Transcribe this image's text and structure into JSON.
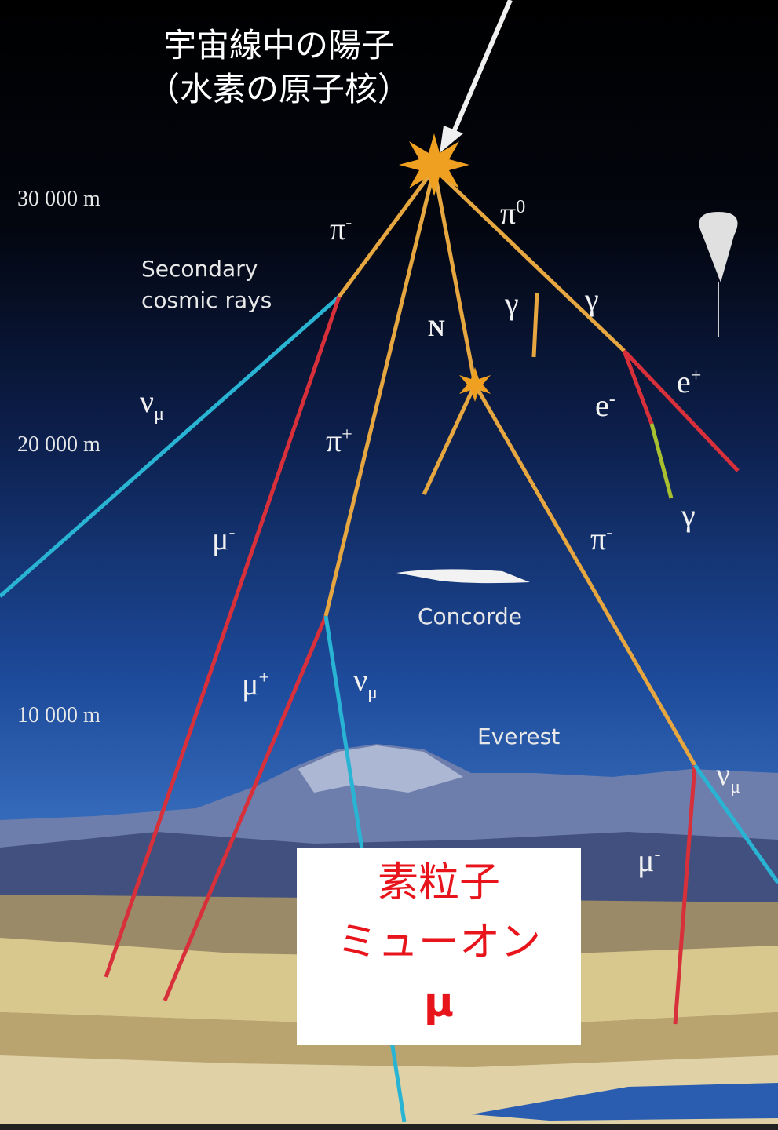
{
  "header": {
    "title_line1": "宇宙線中の陽子",
    "title_line2": "（水素の原子核）"
  },
  "altitudes": [
    "30 000 m",
    "20 000 m",
    "10 000 m"
  ],
  "annotations": {
    "secondary_line1": "Secondary",
    "secondary_line2": "cosmic rays",
    "concorde": "Concorde",
    "everest": "Everest"
  },
  "particles": [
    {
      "symbol": "π",
      "sup": "-"
    },
    {
      "symbol": "π",
      "sup": "0"
    },
    {
      "symbol": "N"
    },
    {
      "symbol": "γ"
    },
    {
      "symbol": "γ"
    },
    {
      "symbol": "e",
      "sup": "+"
    },
    {
      "symbol": "e",
      "sup": "-"
    },
    {
      "symbol": "γ"
    },
    {
      "symbol": "ν",
      "sub": "μ"
    },
    {
      "symbol": "π",
      "sup": "+"
    },
    {
      "symbol": "μ",
      "sup": "-"
    },
    {
      "symbol": "π",
      "sup": "-"
    },
    {
      "symbol": "μ",
      "sup": "+"
    },
    {
      "symbol": "ν",
      "sub": "μ"
    },
    {
      "symbol": "ν",
      "sub": "μ"
    },
    {
      "symbol": "μ",
      "sup": "-"
    }
  ],
  "callout": {
    "line1": "素粒子",
    "line2": "ミューオン",
    "line3": "μ"
  }
}
